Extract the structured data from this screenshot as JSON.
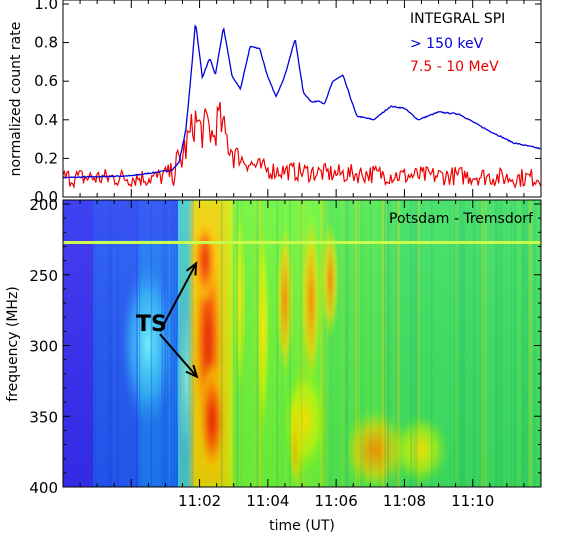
{
  "chart_data": [
    {
      "type": "line",
      "ylabel": "normalized count rate",
      "ylim": [
        0,
        1.0
      ],
      "yticks": [
        "0.0",
        "0.2",
        "0.4",
        "0.6",
        "0.8",
        "1.0"
      ],
      "xlim_min": [
        0,
        70
      ],
      "legend": {
        "title": "INTEGRAL SPI",
        "placement": "top-right"
      },
      "series": [
        {
          "name": "> 150 keV",
          "color": "#0000dd",
          "x_min": [
            0,
            10,
            16,
            17,
            18,
            18.8,
            19.4,
            20.4,
            21.5,
            22.3,
            23.5,
            24.8,
            26,
            27.4,
            28.8,
            30,
            31.2,
            32.5,
            34,
            35.2,
            36.5,
            37.5,
            38.3,
            39.5,
            41,
            43,
            45.5,
            48,
            50,
            52,
            55,
            58,
            62,
            66,
            70
          ],
          "values": [
            0.1,
            0.11,
            0.14,
            0.18,
            0.35,
            0.65,
            0.91,
            0.62,
            0.72,
            0.63,
            0.88,
            0.62,
            0.56,
            0.78,
            0.77,
            0.62,
            0.52,
            0.63,
            0.82,
            0.54,
            0.49,
            0.5,
            0.48,
            0.6,
            0.63,
            0.42,
            0.4,
            0.47,
            0.46,
            0.4,
            0.44,
            0.43,
            0.35,
            0.28,
            0.25
          ]
        },
        {
          "name": "7.5 - 10 MeV",
          "color": "#ee0000",
          "x_min": [
            0,
            14,
            16,
            17,
            17.8,
            18.6,
            19.4,
            20.3,
            21.2,
            22,
            22.8,
            23.5,
            24.5,
            26,
            27.5,
            30,
            35,
            40,
            45,
            50,
            55,
            60,
            65,
            70
          ],
          "values": [
            0.1,
            0.1,
            0.13,
            0.17,
            0.24,
            0.32,
            0.4,
            0.34,
            0.38,
            0.3,
            0.42,
            0.34,
            0.26,
            0.2,
            0.17,
            0.14,
            0.13,
            0.12,
            0.12,
            0.11,
            0.11,
            0.11,
            0.1,
            0.1
          ]
        }
      ]
    },
    {
      "type": "heatmap",
      "title": "Potsdam - Tremsdorf",
      "ylabel": "frequency (MHz)",
      "xlabel": "time (UT)",
      "ylim": [
        200,
        400
      ],
      "xlim_min": [
        0,
        70
      ],
      "yticks": [
        "200",
        "250",
        "300",
        "350",
        "400"
      ],
      "xticks": [
        "11:02",
        "11:04",
        "11:06",
        "11:08",
        "11:10"
      ],
      "annotation": "TS",
      "arrows": [
        {
          "from_min": 14.2,
          "from_mhz": 290,
          "to_min": 19.5,
          "to_mhz": 242
        },
        {
          "from_min": 14.2,
          "from_mhz": 292,
          "to_min": 19.6,
          "to_mhz": 322
        }
      ]
    }
  ]
}
